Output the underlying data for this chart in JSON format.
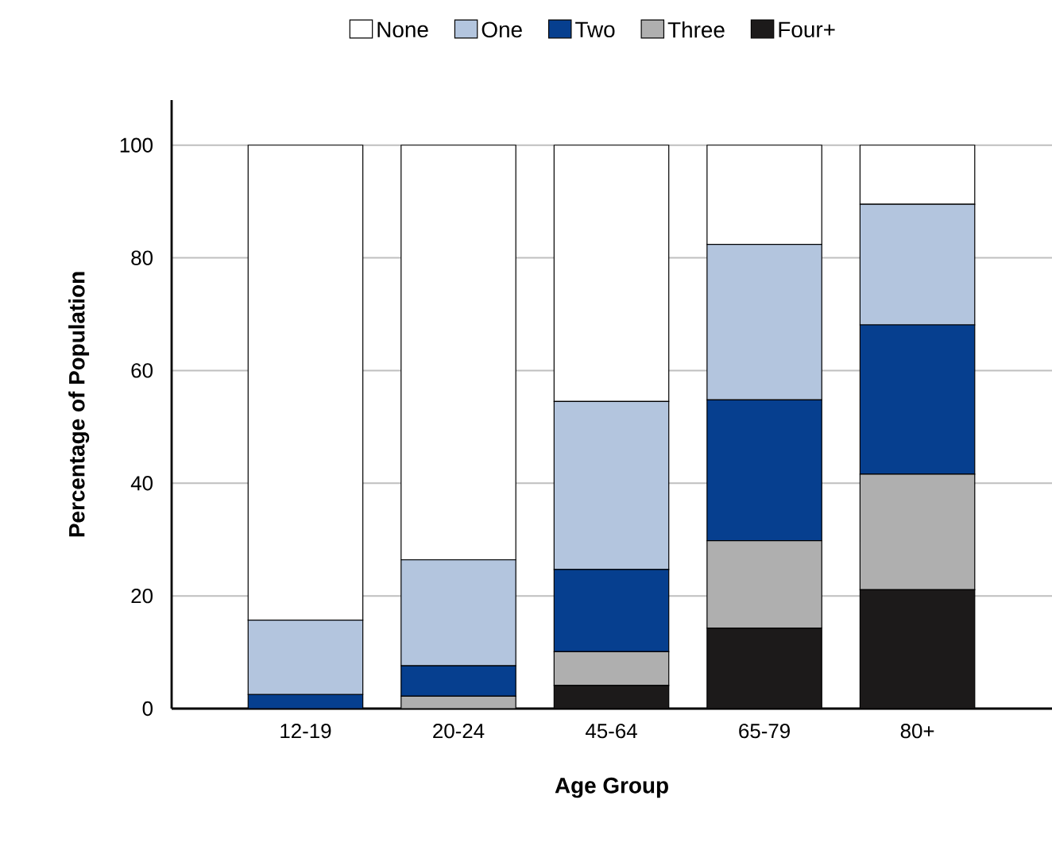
{
  "chart_data": {
    "type": "bar",
    "stacked": true,
    "xlabel": "Age Group",
    "ylabel": "Percentage of Population",
    "categories": [
      "12-19",
      "20-24",
      "45-64",
      "65-79",
      "80+"
    ],
    "series": [
      {
        "name": "Four+",
        "color": "#1c1a1a",
        "values": [
          0,
          0,
          4.1,
          14.3,
          21.1
        ]
      },
      {
        "name": "Three",
        "color": "#afafaf",
        "values": [
          0,
          2.2,
          6.0,
          15.5,
          20.5
        ]
      },
      {
        "name": "Two",
        "color": "#063f8f",
        "values": [
          2.5,
          5.4,
          14.6,
          25.0,
          26.5
        ]
      },
      {
        "name": "One",
        "color": "#b3c5de",
        "values": [
          13.2,
          18.8,
          29.8,
          27.6,
          21.4
        ]
      },
      {
        "name": "None",
        "color": "#ffffff",
        "values": [
          84.3,
          73.6,
          45.5,
          17.6,
          10.5
        ]
      }
    ],
    "ylim": [
      0,
      108
    ],
    "yticks": [
      0,
      20,
      40,
      60,
      80,
      100
    ],
    "grid": "y",
    "legend": "top"
  }
}
